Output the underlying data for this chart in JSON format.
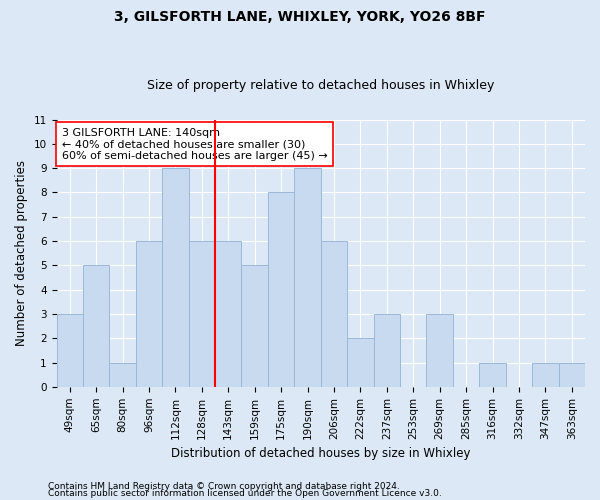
{
  "title_line1": "3, GILSFORTH LANE, WHIXLEY, YORK, YO26 8BF",
  "title_line2": "Size of property relative to detached houses in Whixley",
  "xlabel": "Distribution of detached houses by size in Whixley",
  "ylabel": "Number of detached properties",
  "categories": [
    "49sqm",
    "65sqm",
    "80sqm",
    "96sqm",
    "112sqm",
    "128sqm",
    "143sqm",
    "159sqm",
    "175sqm",
    "190sqm",
    "206sqm",
    "222sqm",
    "237sqm",
    "253sqm",
    "269sqm",
    "285sqm",
    "316sqm",
    "332sqm",
    "347sqm",
    "363sqm"
  ],
  "values": [
    3,
    5,
    1,
    6,
    9,
    6,
    6,
    5,
    8,
    9,
    6,
    2,
    3,
    0,
    3,
    0,
    1,
    0,
    1,
    1
  ],
  "bar_color": "#c8daf0",
  "bar_edge_color": "#9ab8d8",
  "vline_index": 6,
  "vline_color": "red",
  "annotation_text": "3 GILSFORTH LANE: 140sqm\n← 40% of detached houses are smaller (30)\n60% of semi-detached houses are larger (45) →",
  "annotation_box_facecolor": "white",
  "annotation_box_edgecolor": "red",
  "ylim": [
    0,
    11
  ],
  "yticks": [
    0,
    1,
    2,
    3,
    4,
    5,
    6,
    7,
    8,
    9,
    10,
    11
  ],
  "footer_line1": "Contains HM Land Registry data © Crown copyright and database right 2024.",
  "footer_line2": "Contains public sector information licensed under the Open Government Licence v3.0.",
  "background_color": "#dce8f5",
  "plot_background_color": "#dce8f5",
  "grid_color": "white",
  "title_fontsize": 10,
  "subtitle_fontsize": 9,
  "axis_label_fontsize": 8.5,
  "tick_fontsize": 7.5,
  "annotation_fontsize": 8,
  "footer_fontsize": 6.5
}
